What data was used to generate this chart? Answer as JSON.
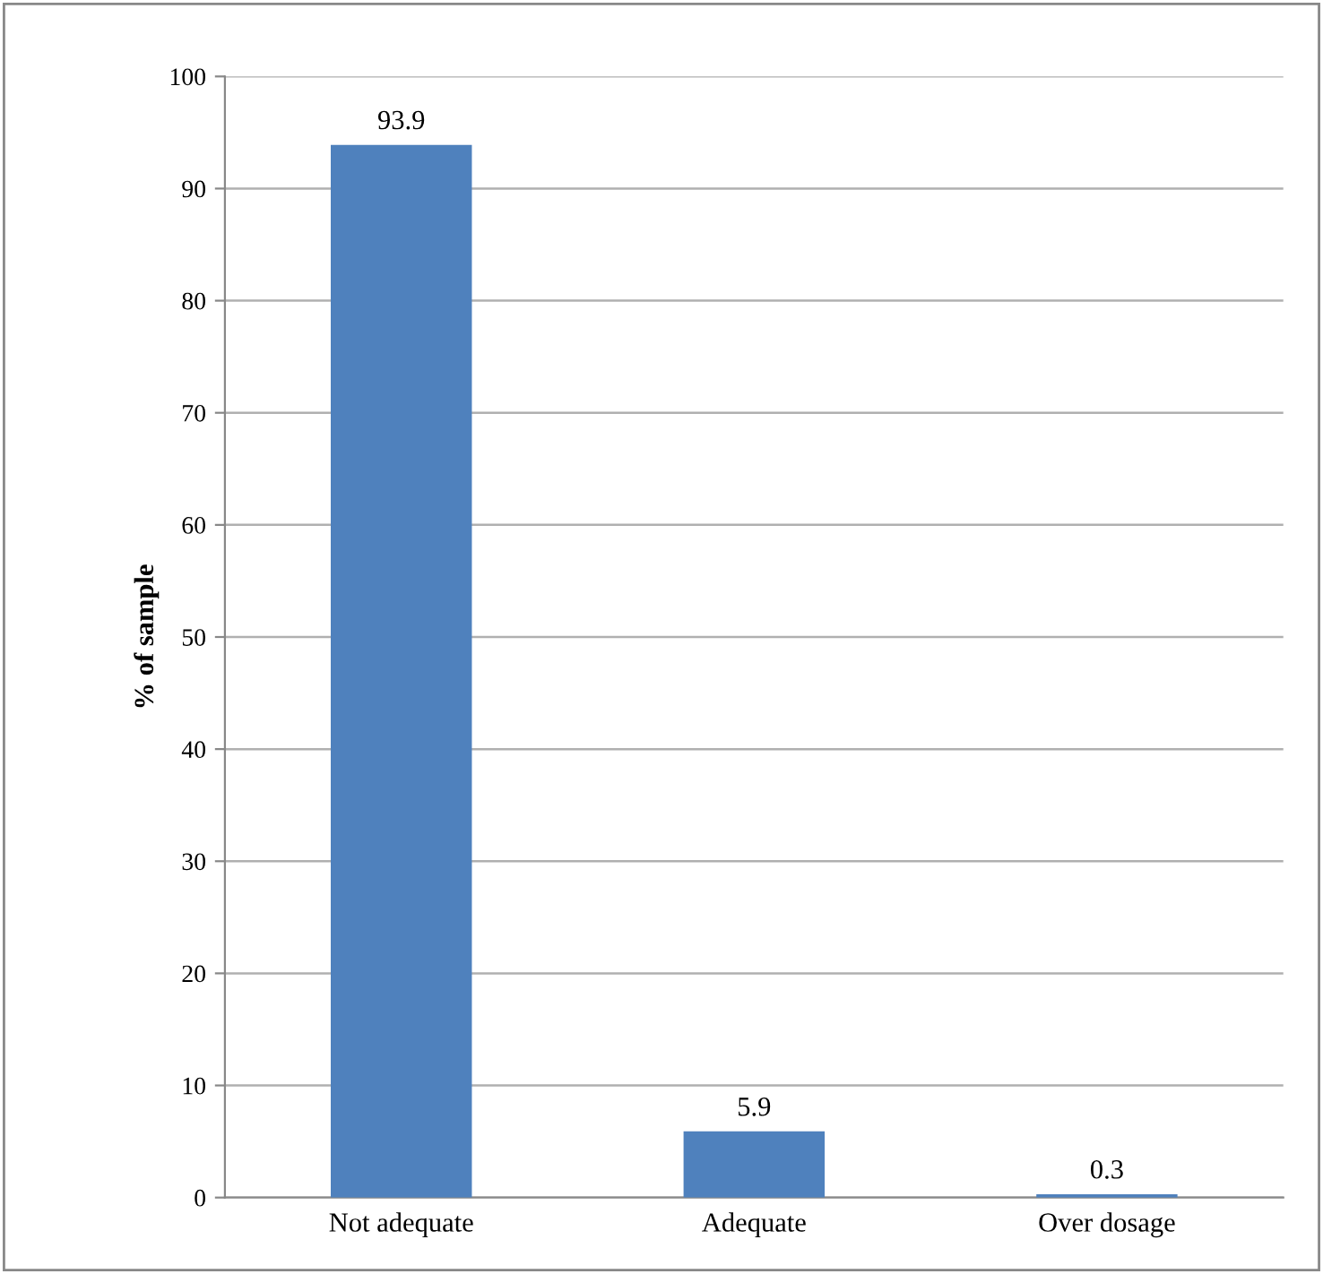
{
  "chart_data": {
    "type": "bar",
    "ylabel": "% of sample",
    "categories": [
      "Not adequate",
      "Adequate",
      "Over dosage"
    ],
    "values": [
      93.9,
      5.9,
      0.3
    ],
    "color": "#4f81bd",
    "ylim": [
      0,
      100
    ],
    "yticks": [
      0,
      10,
      20,
      30,
      40,
      50,
      60,
      70,
      80,
      90,
      100
    ],
    "grid": "y",
    "data_labels": true
  }
}
